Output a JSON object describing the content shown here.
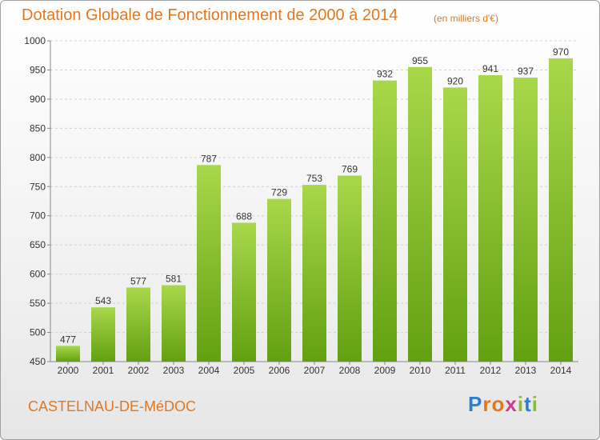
{
  "header": {
    "title": "Dotation Globale de Fonctionnement de 2000 à 2014",
    "unit_note": "(en milliers d'€)"
  },
  "footer": {
    "place": "CASTELNAU-DE-MéDOC",
    "logo_text": "Proxiti"
  },
  "colors": {
    "accent": "#e07820",
    "bar_light": "#a8d84a",
    "bar_dark": "#62a012"
  },
  "chart_data": {
    "type": "bar",
    "title": "Dotation Globale de Fonctionnement de 2000 à 2014",
    "subtitle": "(en milliers d'€)",
    "xlabel": "",
    "ylabel": "",
    "categories": [
      "2000",
      "2001",
      "2002",
      "2003",
      "2004",
      "2005",
      "2006",
      "2007",
      "2008",
      "2009",
      "2010",
      "2011",
      "2012",
      "2013",
      "2014"
    ],
    "values": [
      477,
      543,
      577,
      581,
      787,
      688,
      729,
      753,
      769,
      932,
      955,
      920,
      941,
      937,
      970
    ],
    "ylim": [
      450,
      1000
    ],
    "yticks": [
      450,
      500,
      550,
      600,
      650,
      700,
      750,
      800,
      850,
      900,
      950,
      1000
    ],
    "grid": true,
    "data_labels": true
  }
}
